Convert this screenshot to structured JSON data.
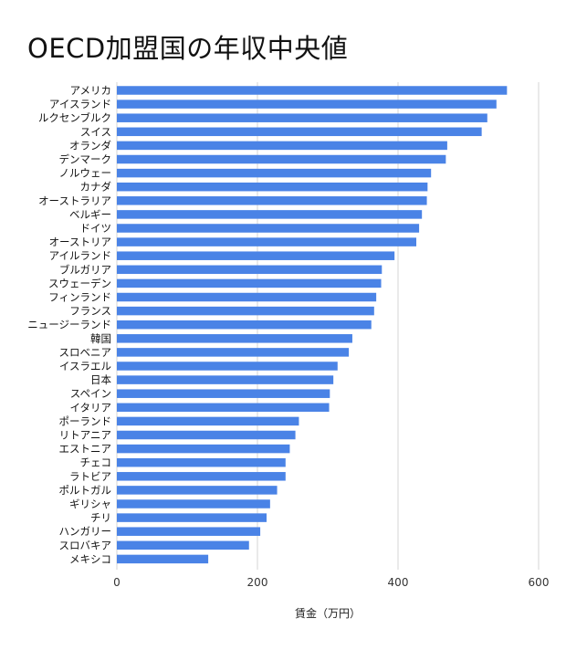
{
  "chart_data": {
    "type": "bar",
    "orientation": "horizontal",
    "title": "OECD加盟国の年収中央値",
    "xlabel": "賃金（万円）",
    "ylabel": "",
    "xlim": [
      0,
      600
    ],
    "x_ticks": [
      "0",
      "200",
      "400",
      "600"
    ],
    "grid": true,
    "color": "#4a83e6",
    "categories": [
      "アメリカ",
      "アイスランド",
      "ルクセンブルク",
      "スイス",
      "オランダ",
      "デンマーク",
      "ノルウェー",
      "カナダ",
      "オーストラリア",
      "ベルギー",
      "ドイツ",
      "オーストリア",
      "アイルランド",
      "ブルガリア",
      "スウェーデン",
      "フィンランド",
      "フランス",
      "ニュージーランド",
      "韓国",
      "スロベニア",
      "イスラエル",
      "日本",
      "スペイン",
      "イタリア",
      "ポーランド",
      "リトアニア",
      "エストニア",
      "チェコ",
      "ラトビア",
      "ポルトガル",
      "ギリシャ",
      "チリ",
      "ハンガリー",
      "スロバキア",
      "メキシコ"
    ],
    "values": [
      555,
      540,
      527,
      519,
      470,
      468,
      447,
      442,
      441,
      434,
      430,
      426,
      395,
      377,
      376,
      369,
      366,
      362,
      335,
      330,
      314,
      308,
      303,
      302,
      259,
      254,
      246,
      240,
      240,
      228,
      218,
      213,
      204,
      188,
      130
    ]
  }
}
